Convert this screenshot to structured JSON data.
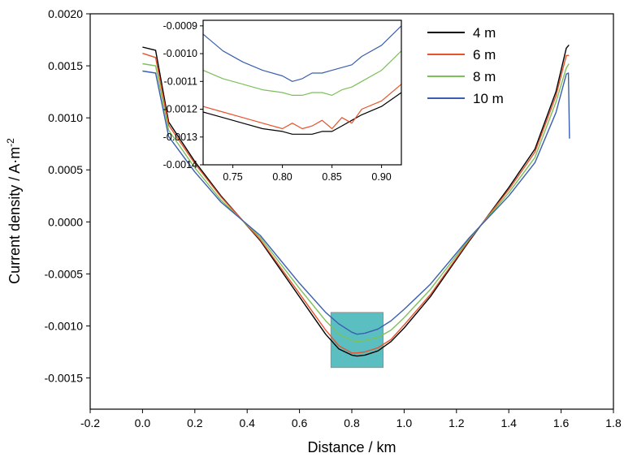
{
  "chart_data": {
    "type": "line",
    "xlabel": "Distance / km",
    "ylabel": "Current density / A·m",
    "ylabel_superscript": "-2",
    "xlim": [
      -0.2,
      1.8
    ],
    "ylim": [
      -0.0018,
      0.002
    ],
    "x_ticks": [
      "-0.2",
      "0.0",
      "0.2",
      "0.4",
      "0.6",
      "0.8",
      "1.0",
      "1.2",
      "1.4",
      "1.6",
      "1.8"
    ],
    "y_ticks": [
      "-0.0015",
      "-0.0010",
      "-0.0005",
      "0.0000",
      "0.0005",
      "0.0010",
      "0.0015",
      "0.0020"
    ],
    "grid": false,
    "legend_position": "top-right",
    "series": [
      {
        "name": "4 m",
        "color": "#000000",
        "x": [
          0.0,
          0.05,
          0.1,
          0.2,
          0.3,
          0.45,
          0.6,
          0.7,
          0.75,
          0.8,
          0.82,
          0.85,
          0.9,
          0.95,
          1.0,
          1.1,
          1.25,
          1.4,
          1.5,
          1.58,
          1.62,
          1.63
        ],
        "y": [
          0.00168,
          0.00165,
          0.00096,
          0.00058,
          0.00025,
          -0.00018,
          -0.00072,
          -0.00108,
          -0.00122,
          -0.00128,
          -0.00129,
          -0.00128,
          -0.00124,
          -0.00115,
          -0.00102,
          -0.00072,
          -0.00018,
          0.00033,
          0.0007,
          0.00125,
          0.00167,
          0.0017
        ]
      },
      {
        "name": "6 m",
        "color": "#e8532a",
        "x": [
          0.0,
          0.05,
          0.1,
          0.2,
          0.3,
          0.45,
          0.6,
          0.7,
          0.75,
          0.8,
          0.82,
          0.85,
          0.9,
          0.95,
          1.0,
          1.1,
          1.25,
          1.4,
          1.5,
          1.58,
          1.62,
          1.63
        ],
        "y": [
          0.00162,
          0.00158,
          0.00093,
          0.00056,
          0.00024,
          -0.00017,
          -0.00069,
          -0.00104,
          -0.00119,
          -0.00126,
          -0.00126,
          -0.00125,
          -0.00121,
          -0.00113,
          -0.00099,
          -0.0007,
          -0.00017,
          0.00031,
          0.00067,
          0.00121,
          0.0016,
          0.0016
        ]
      },
      {
        "name": "8 m",
        "color": "#7cc05a",
        "x": [
          0.0,
          0.05,
          0.1,
          0.2,
          0.3,
          0.45,
          0.6,
          0.7,
          0.75,
          0.8,
          0.82,
          0.85,
          0.9,
          0.95,
          1.0,
          1.1,
          1.25,
          1.4,
          1.5,
          1.58,
          1.62,
          1.63
        ],
        "y": [
          0.00152,
          0.0015,
          0.00088,
          0.00052,
          0.00021,
          -0.00015,
          -0.00064,
          -0.00095,
          -0.00108,
          -0.00114,
          -0.00115,
          -0.00114,
          -0.00111,
          -0.00104,
          -0.00092,
          -0.00065,
          -0.00016,
          0.00028,
          0.00062,
          0.00115,
          0.00148,
          0.00152
        ]
      },
      {
        "name": "10 m",
        "color": "#3a5fb0",
        "x": [
          0.0,
          0.05,
          0.1,
          0.2,
          0.3,
          0.45,
          0.6,
          0.7,
          0.75,
          0.8,
          0.82,
          0.85,
          0.9,
          0.95,
          1.0,
          1.1,
          1.25,
          1.4,
          1.5,
          1.58,
          1.62,
          1.628,
          1.632
        ],
        "y": [
          0.00145,
          0.00143,
          0.00082,
          0.00048,
          0.00019,
          -0.00013,
          -0.00059,
          -0.00087,
          -0.00098,
          -0.00106,
          -0.00108,
          -0.00107,
          -0.00103,
          -0.00095,
          -0.00084,
          -0.0006,
          -0.00015,
          0.00025,
          0.00057,
          0.00105,
          0.00142,
          0.00143,
          0.0008
        ]
      }
    ],
    "highlight_region": {
      "x": [
        0.72,
        0.92
      ],
      "y": [
        -0.0014,
        -0.00087
      ],
      "color": "#5bbfc2"
    },
    "inset": {
      "xlim": [
        0.72,
        0.92
      ],
      "ylim": [
        -0.0014,
        -0.00088
      ],
      "x_ticks": [
        "0.75",
        "0.80",
        "0.85",
        "0.90"
      ],
      "y_ticks": [
        "-0.0014",
        "-0.0013",
        "-0.0012",
        "-0.0011",
        "-0.0010",
        "-0.0009"
      ],
      "series": [
        {
          "name": "4 m",
          "color": "#000000",
          "x": [
            0.72,
            0.74,
            0.76,
            0.78,
            0.8,
            0.81,
            0.82,
            0.83,
            0.84,
            0.85,
            0.86,
            0.87,
            0.88,
            0.9,
            0.92
          ],
          "y": [
            -0.00121,
            -0.00123,
            -0.00125,
            -0.00127,
            -0.00128,
            -0.00129,
            -0.00129,
            -0.00129,
            -0.00128,
            -0.00128,
            -0.00126,
            -0.00124,
            -0.00122,
            -0.00119,
            -0.00114
          ]
        },
        {
          "name": "6 m",
          "color": "#e8532a",
          "x": [
            0.72,
            0.74,
            0.76,
            0.78,
            0.8,
            0.81,
            0.82,
            0.83,
            0.84,
            0.85,
            0.86,
            0.87,
            0.88,
            0.9,
            0.92
          ],
          "y": [
            -0.00119,
            -0.00121,
            -0.00123,
            -0.00125,
            -0.00127,
            -0.00125,
            -0.00127,
            -0.00126,
            -0.00124,
            -0.00127,
            -0.00123,
            -0.00125,
            -0.0012,
            -0.00117,
            -0.00111
          ]
        },
        {
          "name": "8 m",
          "color": "#7cc05a",
          "x": [
            0.72,
            0.74,
            0.76,
            0.78,
            0.8,
            0.81,
            0.82,
            0.83,
            0.84,
            0.85,
            0.86,
            0.87,
            0.88,
            0.9,
            0.92
          ],
          "y": [
            -0.00106,
            -0.00109,
            -0.00111,
            -0.00113,
            -0.00114,
            -0.00115,
            -0.00115,
            -0.00114,
            -0.00114,
            -0.00115,
            -0.00113,
            -0.00112,
            -0.0011,
            -0.00106,
            -0.00099
          ]
        },
        {
          "name": "10 m",
          "color": "#3a5fb0",
          "x": [
            0.72,
            0.74,
            0.76,
            0.78,
            0.8,
            0.81,
            0.82,
            0.83,
            0.84,
            0.85,
            0.86,
            0.87,
            0.88,
            0.9,
            0.92
          ],
          "y": [
            -0.00093,
            -0.00099,
            -0.00103,
            -0.00106,
            -0.00108,
            -0.0011,
            -0.00109,
            -0.00107,
            -0.00107,
            -0.00106,
            -0.00105,
            -0.00104,
            -0.00101,
            -0.00097,
            -0.0009
          ]
        }
      ]
    }
  }
}
